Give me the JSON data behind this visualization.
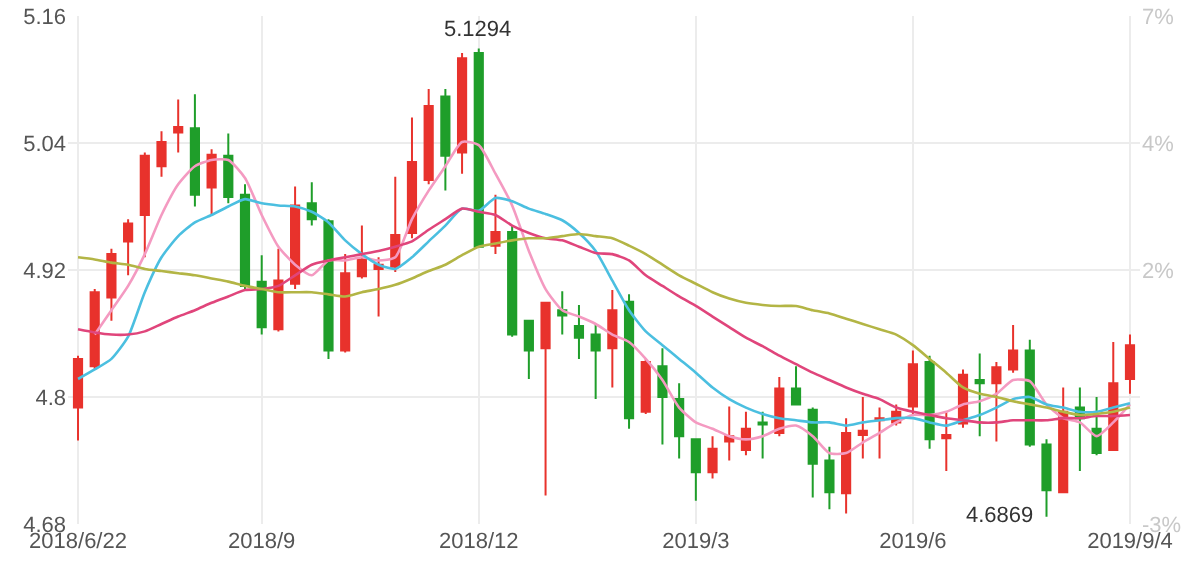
{
  "chart_data": {
    "type": "candlestick",
    "categories": [
      "2018/6/22",
      null,
      null,
      null,
      null,
      null,
      null,
      null,
      null,
      null,
      null,
      "2018/9",
      null,
      null,
      null,
      null,
      null,
      null,
      null,
      null,
      null,
      null,
      null,
      null,
      "2018/12",
      null,
      null,
      null,
      null,
      null,
      null,
      null,
      null,
      null,
      null,
      null,
      null,
      "2019/3",
      null,
      null,
      null,
      null,
      null,
      null,
      null,
      null,
      null,
      null,
      null,
      null,
      "2019/6",
      null,
      null,
      null,
      null,
      null,
      null,
      null,
      null,
      null,
      null,
      null,
      null,
      "2019/9/4"
    ],
    "ohlc": [
      [
        4.79,
        4.839,
        4.759,
        4.836
      ],
      [
        4.829,
        4.902,
        4.826,
        4.899
      ],
      [
        4.894,
        4.94,
        4.872,
        4.935
      ],
      [
        4.947,
        4.968,
        4.915,
        4.964
      ],
      [
        4.972,
        5.031,
        4.932,
        5.028
      ],
      [
        5.018,
        5.051,
        5.008,
        5.041
      ],
      [
        5.05,
        5.081,
        5.031,
        5.055
      ],
      [
        5.054,
        5.086,
        4.98,
        4.991
      ],
      [
        4.998,
        5.034,
        4.972,
        5.029
      ],
      [
        5.028,
        5.049,
        4.983,
        4.989
      ],
      [
        4.991,
        5.001,
        4.902,
        4.905
      ],
      [
        4.909,
        4.934,
        4.859,
        4.866
      ],
      [
        4.864,
        4.94,
        4.862,
        4.91
      ],
      [
        4.907,
        4.999,
        4.902,
        4.981
      ],
      [
        4.983,
        5.003,
        4.962,
        4.968
      ],
      [
        4.966,
        4.968,
        4.836,
        4.844
      ],
      [
        4.844,
        4.935,
        4.842,
        4.917
      ],
      [
        4.914,
        4.962,
        4.912,
        4.93
      ],
      [
        4.921,
        4.932,
        4.876,
        4.925
      ],
      [
        4.923,
        5.008,
        4.918,
        4.953
      ],
      [
        4.955,
        5.064,
        4.95,
        5.022
      ],
      [
        5.005,
        5.091,
        5.001,
        5.075
      ],
      [
        5.084,
        5.091,
        4.995,
        5.028
      ],
      [
        5.031,
        5.125,
        5.011,
        5.12
      ],
      [
        5.125,
        5.1294,
        4.942,
        4.942
      ],
      [
        4.943,
        4.991,
        4.935,
        4.956
      ],
      [
        4.956,
        4.962,
        4.857,
        4.859
      ],
      [
        4.872,
        4.873,
        4.817,
        4.844
      ],
      [
        4.846,
        4.89,
        4.707,
        4.889
      ],
      [
        4.882,
        4.9,
        4.859,
        4.877
      ],
      [
        4.867,
        4.887,
        4.836,
        4.856
      ],
      [
        4.859,
        4.869,
        4.798,
        4.844
      ],
      [
        4.846,
        4.901,
        4.809,
        4.882
      ],
      [
        4.89,
        4.897,
        4.77,
        4.78
      ],
      [
        4.786,
        4.836,
        4.784,
        4.833
      ],
      [
        4.829,
        4.846,
        4.755,
        4.8
      ],
      [
        4.798,
        4.813,
        4.742,
        4.763
      ],
      [
        4.76,
        4.76,
        4.702,
        4.729
      ],
      [
        4.729,
        4.763,
        4.723,
        4.751
      ],
      [
        4.758,
        4.791,
        4.74,
        4.763
      ],
      [
        4.75,
        4.786,
        4.745,
        4.77
      ],
      [
        4.776,
        4.786,
        4.742,
        4.774
      ],
      [
        4.766,
        4.819,
        4.763,
        4.808
      ],
      [
        4.808,
        4.829,
        4.792,
        4.793
      ],
      [
        4.788,
        4.79,
        4.705,
        4.737
      ],
      [
        4.74,
        4.753,
        4.694,
        4.71
      ],
      [
        4.709,
        4.78,
        4.69,
        4.766
      ],
      [
        4.764,
        4.8,
        4.742,
        4.768
      ],
      [
        4.778,
        4.79,
        4.742,
        4.78
      ],
      [
        4.776,
        4.793,
        4.773,
        4.786
      ],
      [
        4.791,
        4.844,
        4.784,
        4.831
      ],
      [
        4.833,
        4.839,
        4.751,
        4.76
      ],
      [
        4.761,
        4.786,
        4.73,
        4.764
      ],
      [
        4.775,
        4.826,
        4.771,
        4.821
      ],
      [
        4.816,
        4.841,
        4.763,
        4.813
      ],
      [
        4.813,
        4.833,
        4.758,
        4.828
      ],
      [
        4.826,
        4.868,
        4.823,
        4.844
      ],
      [
        4.844,
        4.854,
        4.753,
        4.755
      ],
      [
        4.755,
        4.76,
        4.6869,
        4.712
      ],
      [
        4.71,
        4.809,
        4.709,
        4.786
      ],
      [
        4.79,
        4.809,
        4.73,
        4.78
      ],
      [
        4.77,
        4.8,
        4.745,
        4.747
      ],
      [
        4.75,
        4.852,
        4.749,
        4.813
      ],
      [
        4.817,
        4.859,
        4.803,
        4.849
      ]
    ],
    "colors": [
      "#e8322c",
      "#e8322c",
      "#e8322c",
      "#e8322c",
      "#e8322c",
      "#e8322c",
      "#e8322c",
      "#1f9e2a",
      "#e8322c",
      "#1f9e2a",
      "#1f9e2a",
      "#1f9e2a",
      "#e8322c",
      "#e8322c",
      "#1f9e2a",
      "#1f9e2a",
      "#e8322c",
      "#e8322c",
      "#e8322c",
      "#e8322c",
      "#e8322c",
      "#e8322c",
      "#1f9e2a",
      "#e8322c",
      "#1f9e2a",
      "#e8322c",
      "#1f9e2a",
      "#1f9e2a",
      "#e8322c",
      "#1f9e2a",
      "#1f9e2a",
      "#1f9e2a",
      "#e8322c",
      "#1f9e2a",
      "#e8322c",
      "#1f9e2a",
      "#1f9e2a",
      "#1f9e2a",
      "#e8322c",
      "#e8322c",
      "#e8322c",
      "#1f9e2a",
      "#e8322c",
      "#1f9e2a",
      "#1f9e2a",
      "#1f9e2a",
      "#e8322c",
      "#e8322c",
      "#e8322c",
      "#e8322c",
      "#e8322c",
      "#1f9e2a",
      "#e8322c",
      "#e8322c",
      "#1f9e2a",
      "#e8322c",
      "#e8322c",
      "#1f9e2a",
      "#1f9e2a",
      "#e8322c",
      "#1f9e2a",
      "#1f9e2a",
      "#e8322c",
      "#e8322c"
    ],
    "series": [
      {
        "type": "line",
        "color": "#f49ac1",
        "values": [
          null,
          4.859,
          4.882,
          4.905,
          4.935,
          4.972,
          5.001,
          5.018,
          5.024,
          5.024,
          5.007,
          4.972,
          4.942,
          4.925,
          4.915,
          4.929,
          4.929,
          4.932,
          4.929,
          4.932,
          4.968,
          4.995,
          5.018,
          5.041,
          5.038,
          5.011,
          4.981,
          4.938,
          4.902,
          4.882,
          4.876,
          4.869,
          4.859,
          4.852,
          4.836,
          4.816,
          4.79,
          4.776,
          4.77,
          4.763,
          4.76,
          4.763,
          4.77,
          4.773,
          4.763,
          4.747,
          4.747,
          4.757,
          4.766,
          4.776,
          4.783,
          4.783,
          4.786,
          4.793,
          4.796,
          4.803,
          4.816,
          4.815,
          4.793,
          4.78,
          4.776,
          4.763,
          4.776,
          4.793
        ]
      },
      {
        "type": "line",
        "color": "#4bbfe0",
        "values": [
          4.817,
          4.826,
          4.836,
          4.857,
          4.899,
          4.932,
          4.952,
          4.965,
          4.972,
          4.98,
          4.987,
          4.983,
          4.981,
          4.98,
          4.975,
          4.965,
          4.948,
          4.935,
          4.925,
          4.921,
          4.932,
          4.947,
          4.962,
          4.978,
          4.976,
          4.988,
          4.985,
          4.978,
          4.973,
          4.967,
          4.955,
          4.938,
          4.91,
          4.882,
          4.862,
          4.849,
          4.836,
          4.823,
          4.809,
          4.798,
          4.79,
          4.784,
          4.78,
          4.778,
          4.776,
          4.776,
          4.773,
          4.776,
          4.778,
          4.78,
          4.78,
          4.776,
          4.773,
          4.778,
          4.783,
          4.79,
          4.798,
          4.8,
          4.793,
          4.79,
          4.786,
          4.786,
          4.79,
          4.794
        ]
      },
      {
        "type": "line",
        "color": "#e0457b",
        "values": [
          4.864,
          4.861,
          4.859,
          4.859,
          4.862,
          4.869,
          4.876,
          4.882,
          4.889,
          4.895,
          4.901,
          4.902,
          4.905,
          4.915,
          4.925,
          4.929,
          4.932,
          4.935,
          4.938,
          4.942,
          4.947,
          4.958,
          4.968,
          4.978,
          4.975,
          4.972,
          4.962,
          4.955,
          4.95,
          4.948,
          4.942,
          4.936,
          4.935,
          4.929,
          4.915,
          4.905,
          4.895,
          4.886,
          4.876,
          4.866,
          4.856,
          4.848,
          4.839,
          4.831,
          4.823,
          4.816,
          4.809,
          4.803,
          4.798,
          4.79,
          4.786,
          4.783,
          4.78,
          4.778,
          4.776,
          4.776,
          4.778,
          4.778,
          4.778,
          4.78,
          4.78,
          4.782,
          4.782,
          4.783
        ]
      },
      {
        "type": "line",
        "color": "#b3b545",
        "values": [
          4.932,
          4.93,
          4.927,
          4.925,
          4.921,
          4.919,
          4.917,
          4.915,
          4.912,
          4.909,
          4.905,
          4.902,
          4.899,
          4.899,
          4.899,
          4.897,
          4.895,
          4.899,
          4.902,
          4.906,
          4.912,
          4.919,
          4.925,
          4.934,
          4.942,
          4.945,
          4.948,
          4.95,
          4.95,
          4.952,
          4.954,
          4.952,
          4.95,
          4.943,
          4.935,
          4.925,
          4.915,
          4.907,
          4.899,
          4.893,
          4.889,
          4.887,
          4.886,
          4.886,
          4.882,
          4.879,
          4.874,
          4.869,
          4.864,
          4.859,
          4.849,
          4.836,
          4.823,
          4.809,
          4.803,
          4.8,
          4.796,
          4.793,
          4.79,
          4.786,
          4.783,
          4.784,
          4.786,
          4.79
        ]
      }
    ],
    "ylim": [
      4.68,
      5.16
    ],
    "yticks": [
      4.68,
      4.8,
      4.92,
      5.04,
      5.16
    ],
    "y2lim": [
      -3,
      7
    ],
    "y2ticks": [
      {
        "value": -3,
        "label": "-3%"
      },
      {
        "value": 2,
        "label": "2%"
      },
      {
        "value": 4.5,
        "label": "4%"
      },
      {
        "value": 7,
        "label": "7%"
      }
    ],
    "grid": true,
    "annotations": [
      {
        "text": "5.1294",
        "y": 5.1294
      },
      "4.6869"
    ]
  }
}
